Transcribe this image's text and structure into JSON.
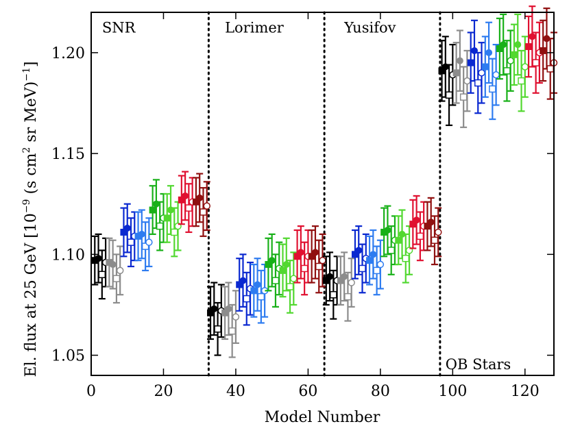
{
  "chart_data": {
    "type": "scatter",
    "title": "",
    "xlabel": "Model Number",
    "ylabel_parts": {
      "main": "El. flux at 25 GeV [10",
      "exp1": "−9",
      "mid1": " (s cm",
      "exp2": "2",
      "mid2": " sr MeV)",
      "exp3": "−1",
      "end": "]"
    },
    "xlim": [
      0,
      128
    ],
    "ylim": [
      1.04,
      1.22
    ],
    "xticks": [
      0,
      20,
      40,
      60,
      80,
      100,
      120
    ],
    "yticks": [
      1.05,
      1.1,
      1.15,
      1.2
    ],
    "ytick_labels": [
      "1.05",
      "1.10",
      "1.15",
      "1.20"
    ],
    "dividers": [
      32.5,
      64.5,
      96.5
    ],
    "regions": [
      {
        "label": "SNR",
        "anchor_x": 3,
        "anchor_y": 1.21
      },
      {
        "label": "Lorimer",
        "anchor_x": 37,
        "anchor_y": 1.21
      },
      {
        "label": "Yusifov",
        "anchor_x": 70,
        "anchor_y": 1.21
      },
      {
        "label": "OB Stars",
        "anchor_x": 98,
        "anchor_y": 1.043
      }
    ],
    "group_colors": [
      "#000000",
      "#8c8c8c",
      "#0a28d0",
      "#2e7cf0",
      "#18b018",
      "#52d830",
      "#e01030",
      "#901010"
    ],
    "marker_shapes": [
      "filled-square",
      "filled-circle",
      "open-square",
      "open-circle"
    ],
    "series": [
      {
        "region": "SNR",
        "base_model": 1,
        "y": [
          1.097,
          1.098,
          1.09,
          1.096,
          1.096,
          1.095,
          1.088,
          1.092,
          1.111,
          1.113,
          1.106,
          1.109,
          1.109,
          1.11,
          1.104,
          1.106,
          1.122,
          1.125,
          1.114,
          1.118,
          1.118,
          1.122,
          1.111,
          1.114,
          1.127,
          1.129,
          1.123,
          1.126,
          1.126,
          1.128,
          1.121,
          1.124
        ],
        "yerr": [
          0.012,
          0.012,
          0.012,
          0.012,
          0.012,
          0.012,
          0.012,
          0.012,
          0.012,
          0.012,
          0.012,
          0.012,
          0.012,
          0.012,
          0.012,
          0.012,
          0.012,
          0.012,
          0.012,
          0.012,
          0.012,
          0.012,
          0.012,
          0.012,
          0.012,
          0.012,
          0.012,
          0.012,
          0.012,
          0.012,
          0.012,
          0.012
        ]
      },
      {
        "region": "Lorimer",
        "base_model": 33,
        "y": [
          1.071,
          1.073,
          1.063,
          1.072,
          1.071,
          1.073,
          1.062,
          1.069,
          1.085,
          1.087,
          1.078,
          1.083,
          1.082,
          1.085,
          1.079,
          1.082,
          1.095,
          1.097,
          1.087,
          1.093,
          1.092,
          1.095,
          1.084,
          1.088,
          1.099,
          1.101,
          1.093,
          1.099,
          1.099,
          1.101,
          1.094,
          1.097
        ],
        "yerr": [
          0.013,
          0.013,
          0.013,
          0.013,
          0.013,
          0.013,
          0.013,
          0.013,
          0.013,
          0.013,
          0.013,
          0.013,
          0.013,
          0.013,
          0.013,
          0.013,
          0.013,
          0.013,
          0.013,
          0.013,
          0.013,
          0.013,
          0.013,
          0.013,
          0.013,
          0.013,
          0.013,
          0.013,
          0.013,
          0.013,
          0.013,
          0.013
        ]
      },
      {
        "region": "Yusifov",
        "base_model": 65,
        "y": [
          1.087,
          1.089,
          1.08,
          1.087,
          1.087,
          1.089,
          1.079,
          1.086,
          1.1,
          1.102,
          1.093,
          1.098,
          1.097,
          1.1,
          1.092,
          1.095,
          1.111,
          1.112,
          1.102,
          1.107,
          1.107,
          1.11,
          1.098,
          1.102,
          1.115,
          1.117,
          1.109,
          1.114,
          1.114,
          1.116,
          1.107,
          1.111
        ],
        "yerr": [
          0.012,
          0.012,
          0.012,
          0.012,
          0.012,
          0.012,
          0.012,
          0.012,
          0.012,
          0.012,
          0.012,
          0.012,
          0.012,
          0.012,
          0.012,
          0.012,
          0.012,
          0.012,
          0.012,
          0.012,
          0.012,
          0.012,
          0.012,
          0.012,
          0.012,
          0.012,
          0.012,
          0.012,
          0.012,
          0.012,
          0.012,
          0.012
        ]
      },
      {
        "region": "OB Stars",
        "base_model": 97,
        "y": [
          1.191,
          1.193,
          1.179,
          1.189,
          1.19,
          1.196,
          1.178,
          1.186,
          1.195,
          1.201,
          1.185,
          1.19,
          1.193,
          1.2,
          1.182,
          1.189,
          1.202,
          1.204,
          1.191,
          1.196,
          1.199,
          1.204,
          1.186,
          1.193,
          1.203,
          1.208,
          1.195,
          1.2,
          1.201,
          1.207,
          1.192,
          1.195
        ],
        "yerr": [
          0.015,
          0.015,
          0.015,
          0.015,
          0.015,
          0.015,
          0.015,
          0.015,
          0.015,
          0.015,
          0.015,
          0.015,
          0.015,
          0.015,
          0.015,
          0.015,
          0.015,
          0.015,
          0.015,
          0.015,
          0.015,
          0.015,
          0.015,
          0.015,
          0.015,
          0.015,
          0.015,
          0.015,
          0.015,
          0.015,
          0.015,
          0.015
        ]
      }
    ]
  }
}
